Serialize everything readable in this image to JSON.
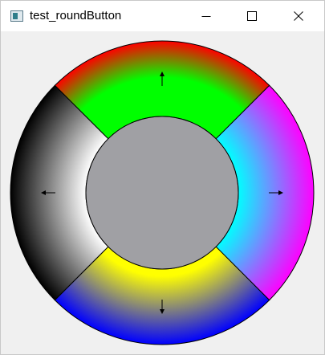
{
  "window": {
    "title": "test_roundButton",
    "controls": [
      "minimize",
      "maximize",
      "close"
    ]
  },
  "round_button": {
    "segments": [
      {
        "name": "up",
        "arrow": "arrow-up-icon",
        "gradient_outer": "#ff0000",
        "gradient_inner": "#00ff00"
      },
      {
        "name": "right",
        "arrow": "arrow-right-icon",
        "gradient_outer": "#ff00ff",
        "gradient_inner": "#00ffff"
      },
      {
        "name": "down",
        "arrow": "arrow-down-icon",
        "gradient_outer": "#0000ff",
        "gradient_inner": "#ffff00"
      },
      {
        "name": "left",
        "arrow": "arrow-left-icon",
        "gradient_outer": "#000000",
        "gradient_inner": "#ffffff"
      }
    ],
    "center_color": "#a0a0a4"
  }
}
